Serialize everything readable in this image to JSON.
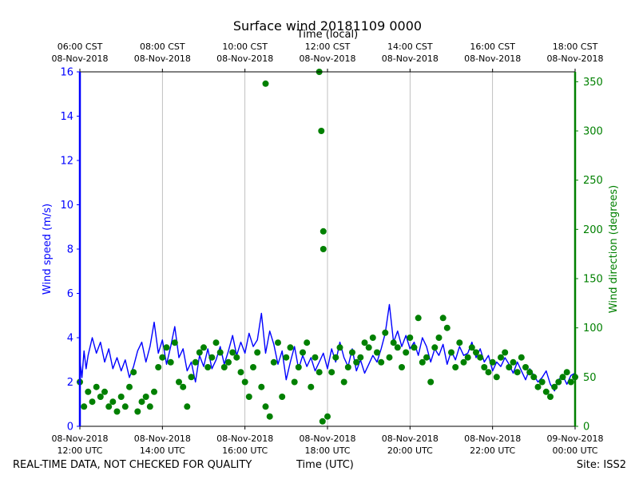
{
  "chart_data": {
    "type": "line",
    "title": "Surface wind 20181109 0000",
    "top_axis_label": "Time (local)",
    "xlabel": "Time (UTC)",
    "ylabel_left": "Wind speed (m/s)",
    "ylabel_right": "Wind direction (degrees)",
    "x_range_hours_utc": [
      12.0,
      24.0
    ],
    "ylim_left": [
      0,
      16
    ],
    "ylim_right": [
      0,
      360
    ],
    "grid": "vertical",
    "bottom_ticks": [
      {
        "hour": 12,
        "line1": "08-Nov-2018",
        "line2": "12:00 UTC"
      },
      {
        "hour": 14,
        "line1": "08-Nov-2018",
        "line2": "14:00 UTC"
      },
      {
        "hour": 16,
        "line1": "08-Nov-2018",
        "line2": "16:00 UTC"
      },
      {
        "hour": 18,
        "line1": "08-Nov-2018",
        "line2": "18:00 UTC"
      },
      {
        "hour": 20,
        "line1": "08-Nov-2018",
        "line2": "20:00 UTC"
      },
      {
        "hour": 22,
        "line1": "08-Nov-2018",
        "line2": "22:00 UTC"
      },
      {
        "hour": 24,
        "line1": "09-Nov-2018",
        "line2": "00:00 UTC"
      }
    ],
    "top_ticks": [
      {
        "hour": 12,
        "line1": "06:00 CST",
        "line2": "08-Nov-2018"
      },
      {
        "hour": 14,
        "line1": "08:00 CST",
        "line2": "08-Nov-2018"
      },
      {
        "hour": 16,
        "line1": "10:00 CST",
        "line2": "08-Nov-2018"
      },
      {
        "hour": 18,
        "line1": "12:00 CST",
        "line2": "08-Nov-2018"
      },
      {
        "hour": 20,
        "line1": "14:00 CST",
        "line2": "08-Nov-2018"
      },
      {
        "hour": 22,
        "line1": "16:00 CST",
        "line2": "08-Nov-2018"
      },
      {
        "hour": 24,
        "line1": "18:00 CST",
        "line2": "08-Nov-2018"
      }
    ],
    "left_ticks": [
      "0",
      "2",
      "4",
      "6",
      "8",
      "10",
      "12",
      "14",
      "16"
    ],
    "right_ticks": [
      "0",
      "50",
      "100",
      "150",
      "200",
      "250",
      "300",
      "350"
    ],
    "series": [
      {
        "name": "Wind speed",
        "axis": "left",
        "color": "#0000ff",
        "style": "line",
        "x_hours": [
          12.0,
          12.05,
          12.1,
          12.15,
          12.2,
          12.3,
          12.4,
          12.5,
          12.6,
          12.7,
          12.8,
          12.9,
          13.0,
          13.1,
          13.2,
          13.3,
          13.4,
          13.5,
          13.6,
          13.7,
          13.8,
          13.9,
          14.0,
          14.1,
          14.2,
          14.3,
          14.4,
          14.5,
          14.6,
          14.7,
          14.8,
          14.9,
          15.0,
          15.1,
          15.2,
          15.3,
          15.4,
          15.5,
          15.6,
          15.7,
          15.8,
          15.9,
          16.0,
          16.1,
          16.2,
          16.3,
          16.4,
          16.5,
          16.6,
          16.7,
          16.8,
          16.9,
          17.0,
          17.1,
          17.2,
          17.3,
          17.4,
          17.5,
          17.6,
          17.7,
          17.8,
          17.9,
          18.0,
          18.1,
          18.2,
          18.3,
          18.4,
          18.5,
          18.6,
          18.7,
          18.8,
          18.9,
          19.0,
          19.1,
          19.2,
          19.3,
          19.4,
          19.5,
          19.6,
          19.7,
          19.8,
          19.9,
          20.0,
          20.1,
          20.2,
          20.3,
          20.4,
          20.5,
          20.6,
          20.7,
          20.8,
          20.9,
          21.0,
          21.1,
          21.2,
          21.3,
          21.4,
          21.5,
          21.6,
          21.7,
          21.8,
          21.9,
          22.0,
          22.1,
          22.2,
          22.3,
          22.4,
          22.5,
          22.6,
          22.7,
          22.8,
          22.9,
          23.0,
          23.1,
          23.2,
          23.3,
          23.4,
          23.5,
          23.6,
          23.7,
          23.8,
          23.9,
          24.0
        ],
        "values": [
          3.0,
          2.2,
          3.4,
          2.6,
          3.2,
          4.0,
          3.3,
          3.8,
          2.9,
          3.5,
          2.6,
          3.1,
          2.5,
          3.0,
          2.2,
          2.7,
          3.4,
          3.8,
          2.9,
          3.6,
          4.7,
          3.3,
          3.9,
          2.8,
          3.6,
          4.5,
          3.1,
          3.5,
          2.5,
          2.9,
          2.0,
          3.2,
          2.7,
          3.5,
          2.6,
          3.0,
          3.6,
          2.8,
          3.4,
          4.1,
          3.2,
          3.8,
          3.3,
          4.2,
          3.6,
          3.9,
          5.1,
          3.3,
          4.3,
          3.7,
          2.8,
          3.4,
          2.1,
          2.9,
          3.6,
          2.6,
          3.2,
          2.7,
          3.1,
          2.5,
          2.9,
          3.3,
          2.6,
          3.5,
          2.9,
          3.8,
          3.1,
          2.7,
          3.5,
          2.5,
          3.0,
          2.4,
          2.8,
          3.2,
          2.9,
          3.5,
          4.2,
          5.5,
          3.8,
          4.3,
          3.6,
          4.1,
          3.5,
          3.8,
          3.2,
          4.0,
          3.6,
          2.9,
          3.5,
          3.2,
          3.7,
          2.8,
          3.4,
          3.0,
          3.6,
          3.2,
          3.3,
          3.8,
          3.1,
          3.5,
          2.9,
          3.2,
          2.5,
          2.9,
          2.7,
          3.1,
          2.8,
          2.4,
          2.9,
          2.5,
          2.1,
          2.6,
          2.3,
          2.0,
          2.2,
          2.5,
          1.9,
          1.6,
          2.1,
          2.3,
          1.9,
          2.3,
          2.4
        ]
      },
      {
        "name": "Wind direction",
        "axis": "right",
        "color": "#008000",
        "style": "markers",
        "x_hours": [
          12.0,
          12.1,
          12.2,
          12.3,
          12.4,
          12.5,
          12.6,
          12.7,
          12.8,
          12.9,
          13.0,
          13.1,
          13.2,
          13.3,
          13.4,
          13.5,
          13.6,
          13.7,
          13.8,
          13.9,
          14.0,
          14.1,
          14.2,
          14.3,
          14.4,
          14.5,
          14.6,
          14.7,
          14.8,
          14.9,
          15.0,
          15.1,
          15.2,
          15.3,
          15.4,
          15.5,
          15.6,
          15.7,
          15.8,
          15.9,
          16.0,
          16.1,
          16.2,
          16.3,
          16.4,
          16.5,
          16.5,
          16.6,
          16.7,
          16.8,
          16.9,
          17.0,
          17.1,
          17.2,
          17.3,
          17.4,
          17.5,
          17.6,
          17.7,
          17.8,
          17.8,
          17.85,
          17.88,
          17.9,
          17.9,
          18.0,
          18.1,
          18.2,
          18.3,
          18.4,
          18.5,
          18.6,
          18.7,
          18.8,
          18.9,
          19.0,
          19.1,
          19.2,
          19.3,
          19.4,
          19.5,
          19.6,
          19.7,
          19.8,
          19.9,
          20.0,
          20.1,
          20.2,
          20.3,
          20.4,
          20.5,
          20.6,
          20.7,
          20.8,
          20.9,
          21.0,
          21.1,
          21.2,
          21.3,
          21.4,
          21.5,
          21.6,
          21.7,
          21.8,
          21.9,
          22.0,
          22.1,
          22.2,
          22.3,
          22.4,
          22.5,
          22.6,
          22.7,
          22.8,
          22.9,
          23.0,
          23.1,
          23.2,
          23.3,
          23.4,
          23.5,
          23.6,
          23.7,
          23.8,
          23.9,
          24.0
        ],
        "values": [
          45,
          20,
          35,
          25,
          40,
          30,
          35,
          20,
          25,
          15,
          30,
          20,
          40,
          55,
          15,
          25,
          30,
          20,
          35,
          60,
          70,
          80,
          65,
          85,
          45,
          40,
          20,
          50,
          65,
          75,
          80,
          60,
          70,
          85,
          75,
          60,
          65,
          75,
          70,
          55,
          45,
          30,
          60,
          75,
          40,
          20,
          348,
          10,
          65,
          85,
          30,
          70,
          80,
          45,
          60,
          75,
          85,
          40,
          70,
          55,
          360,
          300,
          5,
          198,
          180,
          10,
          55,
          70,
          80,
          45,
          60,
          75,
          65,
          70,
          85,
          80,
          90,
          75,
          65,
          95,
          70,
          85,
          80,
          60,
          75,
          90,
          80,
          110,
          65,
          70,
          45,
          80,
          90,
          110,
          100,
          75,
          60,
          85,
          65,
          70,
          80,
          75,
          70,
          60,
          55,
          65,
          50,
          70,
          75,
          60,
          65,
          55,
          70,
          60,
          55,
          50,
          40,
          45,
          35,
          30,
          40,
          45,
          50,
          55,
          45,
          50
        ]
      }
    ]
  },
  "footer": {
    "left": "REAL-TIME DATA, NOT CHECKED FOR QUALITY",
    "center": "Time (UTC)",
    "right": "Site: ISS2"
  }
}
